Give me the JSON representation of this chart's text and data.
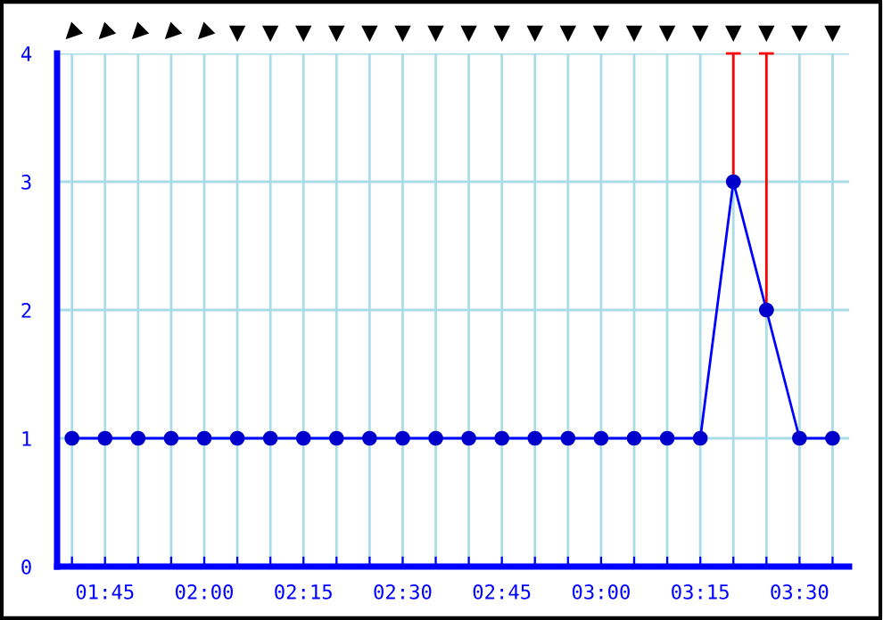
{
  "chart_data": {
    "type": "line",
    "categories": [
      null,
      "01:45",
      null,
      null,
      "02:00",
      null,
      null,
      "02:15",
      null,
      null,
      "02:30",
      null,
      null,
      "02:45",
      null,
      null,
      "03:00",
      null,
      null,
      "03:15",
      null,
      null,
      "03:30",
      null
    ],
    "series": [
      {
        "color": "#0000ff",
        "values": [
          1,
          1,
          1,
          1,
          1,
          1,
          1,
          1,
          1,
          1,
          1,
          1,
          1,
          1,
          1,
          1,
          1,
          1,
          1,
          1,
          3,
          2,
          1,
          1
        ],
        "errors": [
          null,
          null,
          null,
          null,
          null,
          null,
          null,
          null,
          null,
          null,
          null,
          null,
          null,
          null,
          null,
          null,
          null,
          null,
          null,
          null,
          [
            3,
            4
          ],
          [
            2,
            4
          ],
          null,
          null
        ]
      }
    ],
    "ylim": [
      0,
      4
    ],
    "yticks": [
      0,
      1,
      2,
      3,
      4
    ],
    "grid": true,
    "marker": "circle",
    "line_style": "solid",
    "legend": false
  }
}
